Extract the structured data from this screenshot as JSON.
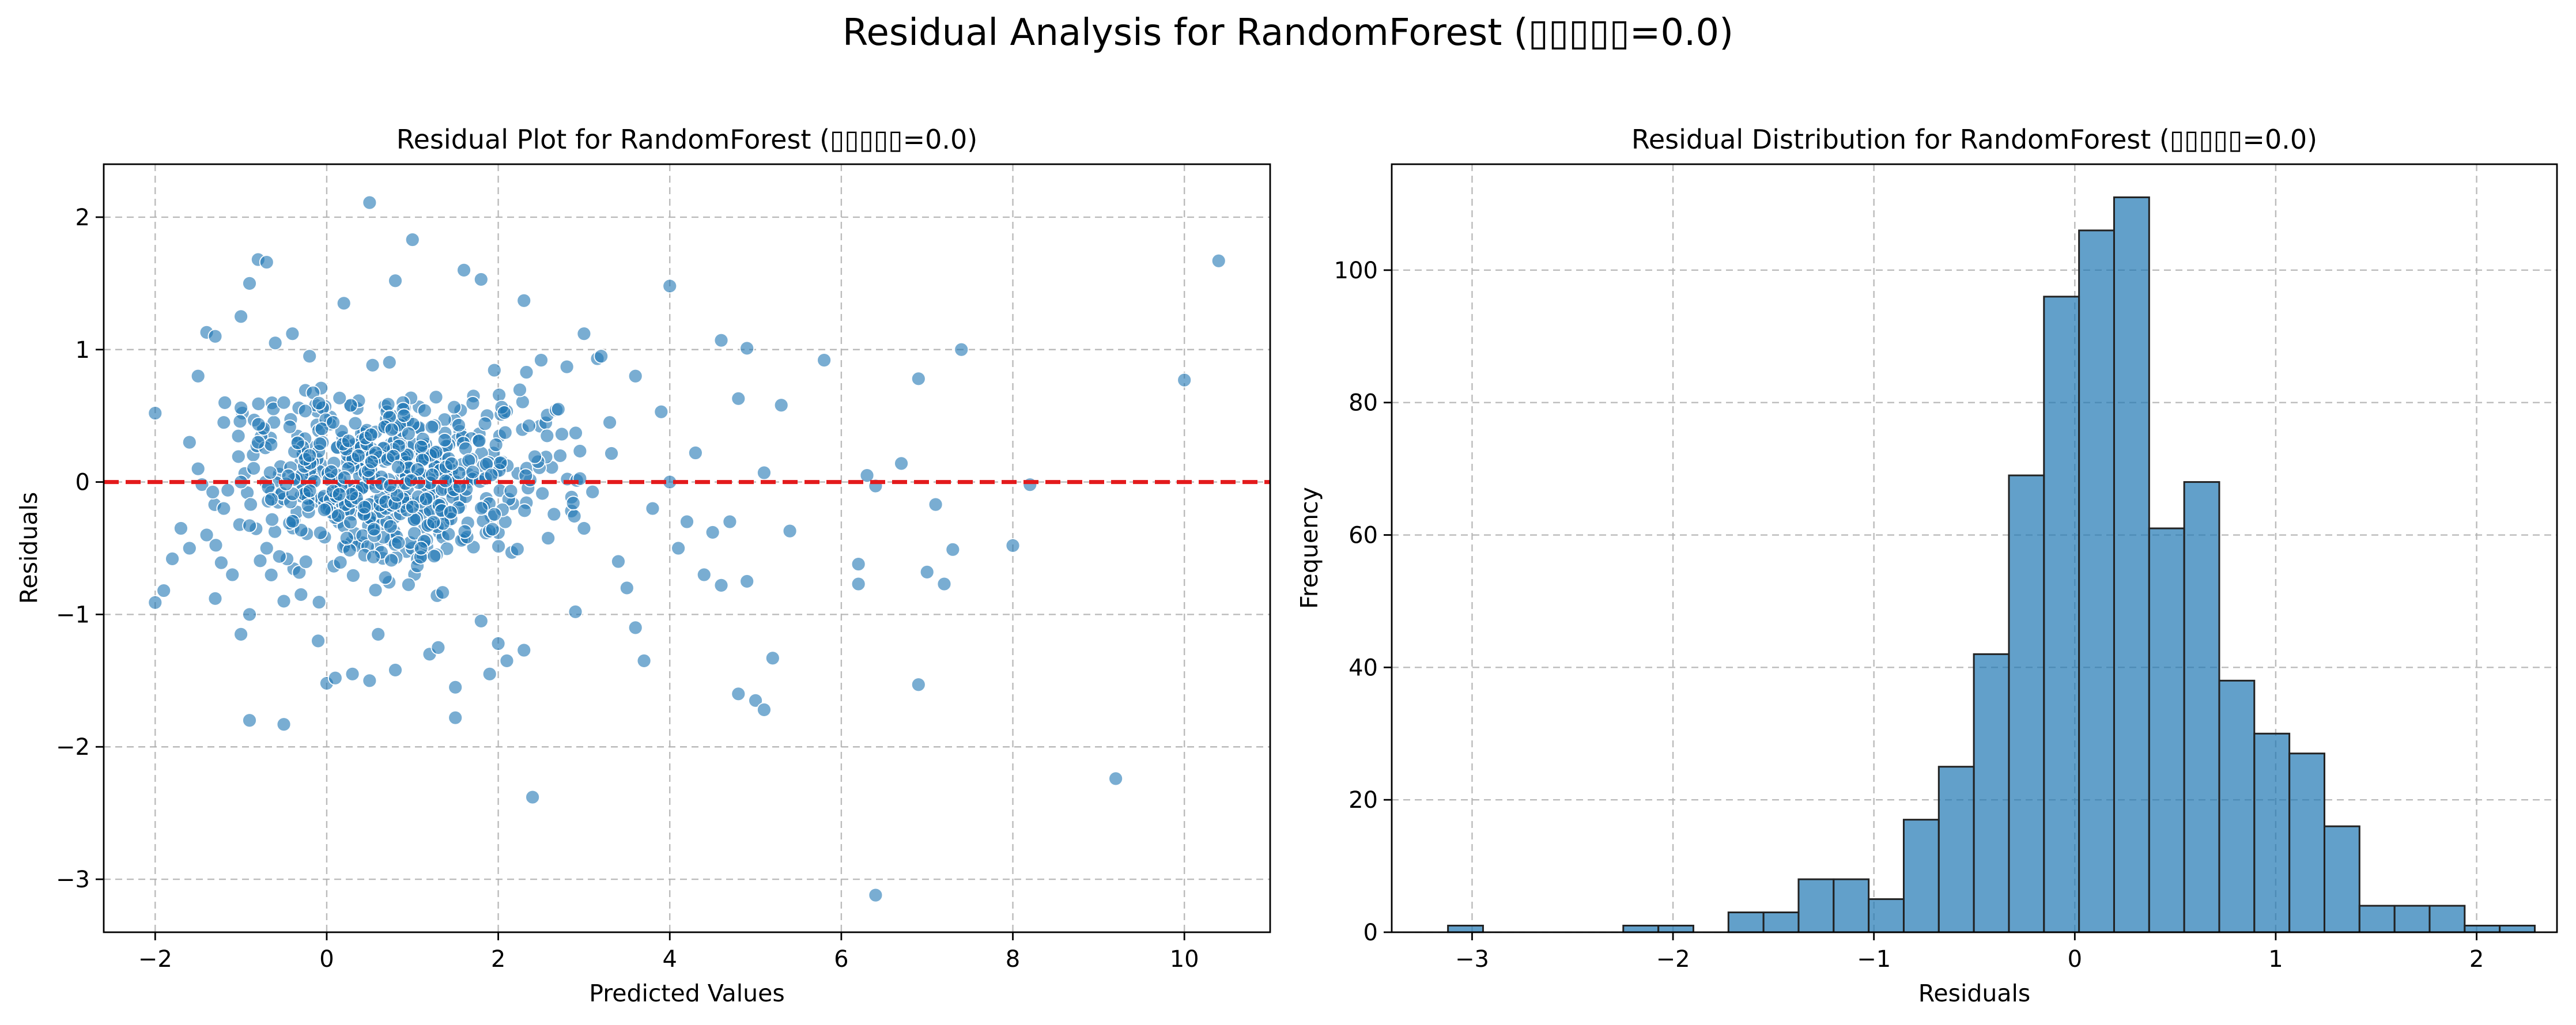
{
  "figure": {
    "title": "Residual Analysis for RandomForest (▯▯▯▯▯=0.0)"
  },
  "colors": {
    "series": "#1f77b4",
    "zero_line": "#e31a1c",
    "grid": "#b0b0b0",
    "bar_edge": "#222222"
  },
  "chart_data": [
    {
      "type": "scatter",
      "title": "Residual Plot for RandomForest (▯▯▯▯▯=0.0)",
      "xlabel": "Predicted Values",
      "ylabel": "Residuals",
      "xlim": [
        -2.6,
        11.0
      ],
      "ylim": [
        -3.4,
        2.4
      ],
      "xticks": [
        -2,
        0,
        2,
        4,
        6,
        8,
        10
      ],
      "xtick_labels": [
        "−2",
        "0",
        "2",
        "4",
        "6",
        "8",
        "10"
      ],
      "yticks": [
        -3,
        -2,
        -1,
        0,
        1,
        2
      ],
      "ytick_labels": [
        "−3",
        "−2",
        "−1",
        "0",
        "1",
        "2"
      ],
      "grid": true,
      "reference_line": {
        "y": 0,
        "style": "dashed",
        "color": "red"
      },
      "points": [
        [
          -2.0,
          0.52
        ],
        [
          -2.0,
          -0.91
        ],
        [
          -1.9,
          -0.82
        ],
        [
          -1.8,
          -0.58
        ],
        [
          -1.7,
          -0.35
        ],
        [
          -1.6,
          0.3
        ],
        [
          -1.6,
          -0.5
        ],
        [
          -1.5,
          0.1
        ],
        [
          -1.5,
          0.8
        ],
        [
          -1.4,
          -0.4
        ],
        [
          -1.4,
          1.13
        ],
        [
          -1.3,
          1.1
        ],
        [
          -1.3,
          -0.88
        ],
        [
          -1.2,
          0.45
        ],
        [
          -1.2,
          -0.2
        ],
        [
          -1.1,
          -0.7
        ],
        [
          -1.0,
          0.56
        ],
        [
          -1.0,
          1.25
        ],
        [
          -1.0,
          -1.15
        ],
        [
          -1.0,
          0.0
        ],
        [
          -0.9,
          1.5
        ],
        [
          -0.9,
          -1.0
        ],
        [
          -0.9,
          -1.8
        ],
        [
          -0.8,
          1.68
        ],
        [
          -0.8,
          0.3
        ],
        [
          -0.7,
          1.66
        ],
        [
          -0.7,
          -0.5
        ],
        [
          -0.6,
          1.05
        ],
        [
          -0.5,
          -0.9
        ],
        [
          -0.5,
          -1.83
        ],
        [
          -0.5,
          0.6
        ],
        [
          -0.4,
          1.12
        ],
        [
          -0.3,
          -0.85
        ],
        [
          -0.2,
          0.2
        ],
        [
          -0.2,
          0.95
        ],
        [
          -0.1,
          -1.2
        ],
        [
          0.0,
          -1.52
        ],
        [
          0.1,
          -1.48
        ],
        [
          0.2,
          1.35
        ],
        [
          0.3,
          -1.45
        ],
        [
          0.5,
          2.11
        ],
        [
          0.5,
          -1.5
        ],
        [
          0.6,
          -1.15
        ],
        [
          0.8,
          1.52
        ],
        [
          0.8,
          -1.42
        ],
        [
          1.0,
          1.83
        ],
        [
          1.1,
          -0.5
        ],
        [
          1.2,
          -1.3
        ],
        [
          1.3,
          -1.25
        ],
        [
          1.5,
          -1.55
        ],
        [
          1.5,
          -1.78
        ],
        [
          1.6,
          1.6
        ],
        [
          1.8,
          1.53
        ],
        [
          1.8,
          -1.05
        ],
        [
          1.9,
          -1.45
        ],
        [
          2.0,
          -1.22
        ],
        [
          2.1,
          -1.35
        ],
        [
          2.3,
          1.37
        ],
        [
          2.3,
          -1.27
        ],
        [
          2.4,
          -2.38
        ],
        [
          2.5,
          0.92
        ],
        [
          2.7,
          0.55
        ],
        [
          2.8,
          0.87
        ],
        [
          2.9,
          -0.98
        ],
        [
          3.0,
          1.12
        ],
        [
          3.0,
          -0.35
        ],
        [
          3.2,
          0.95
        ],
        [
          3.3,
          0.45
        ],
        [
          3.4,
          -0.6
        ],
        [
          3.5,
          -0.8
        ],
        [
          3.6,
          -1.1
        ],
        [
          3.6,
          0.8
        ],
        [
          3.7,
          -1.35
        ],
        [
          3.8,
          -0.2
        ],
        [
          3.9,
          0.53
        ],
        [
          4.0,
          1.48
        ],
        [
          4.0,
          0.0
        ],
        [
          4.1,
          -0.5
        ],
        [
          4.2,
          -0.3
        ],
        [
          4.3,
          0.22
        ],
        [
          4.4,
          -0.7
        ],
        [
          4.5,
          -0.38
        ],
        [
          4.6,
          1.07
        ],
        [
          4.6,
          -0.78
        ],
        [
          4.7,
          -0.3
        ],
        [
          4.8,
          0.63
        ],
        [
          4.8,
          -1.6
        ],
        [
          4.9,
          1.01
        ],
        [
          4.9,
          -0.75
        ],
        [
          5.0,
          -1.65
        ],
        [
          5.1,
          -1.72
        ],
        [
          5.1,
          0.07
        ],
        [
          5.2,
          -1.33
        ],
        [
          5.3,
          0.58
        ],
        [
          5.4,
          -0.37
        ],
        [
          5.8,
          0.92
        ],
        [
          6.2,
          -0.62
        ],
        [
          6.2,
          -0.77
        ],
        [
          6.3,
          0.05
        ],
        [
          6.4,
          -0.03
        ],
        [
          6.4,
          -3.12
        ],
        [
          6.7,
          0.14
        ],
        [
          6.9,
          -1.53
        ],
        [
          6.9,
          0.78
        ],
        [
          7.0,
          -0.68
        ],
        [
          7.1,
          -0.17
        ],
        [
          7.2,
          -0.77
        ],
        [
          7.3,
          -0.51
        ],
        [
          7.4,
          1.0
        ],
        [
          8.0,
          -0.48
        ],
        [
          8.2,
          -0.02
        ],
        [
          9.2,
          -2.24
        ],
        [
          10.0,
          0.77
        ],
        [
          10.4,
          1.67
        ]
      ],
      "dense_cluster": {
        "x_center": 0.8,
        "x_spread": 1.6,
        "y_center": 0.05,
        "y_spread": 0.55,
        "count": 620,
        "seed": 7
      }
    },
    {
      "type": "bar",
      "title": "Residual Distribution for RandomForest (▯▯▯▯▯=0.0)",
      "xlabel": "Residuals",
      "ylabel": "Frequency",
      "xlim": [
        -3.4,
        2.4
      ],
      "ylim": [
        0,
        116
      ],
      "xticks": [
        -3,
        -2,
        -1,
        0,
        1,
        2
      ],
      "xtick_labels": [
        "−3",
        "−2",
        "−1",
        "0",
        "1",
        "2"
      ],
      "yticks": [
        0,
        20,
        40,
        60,
        80,
        100
      ],
      "ytick_labels": [
        "0",
        "20",
        "40",
        "60",
        "80",
        "100"
      ],
      "grid": true,
      "bin_start": -3.12,
      "bin_width": 0.1745,
      "counts": [
        1,
        0,
        0,
        0,
        0,
        1,
        1,
        0,
        3,
        3,
        8,
        8,
        5,
        17,
        25,
        42,
        69,
        96,
        106,
        111,
        61,
        68,
        38,
        30,
        27,
        16,
        4,
        4,
        4,
        1,
        1
      ]
    }
  ]
}
